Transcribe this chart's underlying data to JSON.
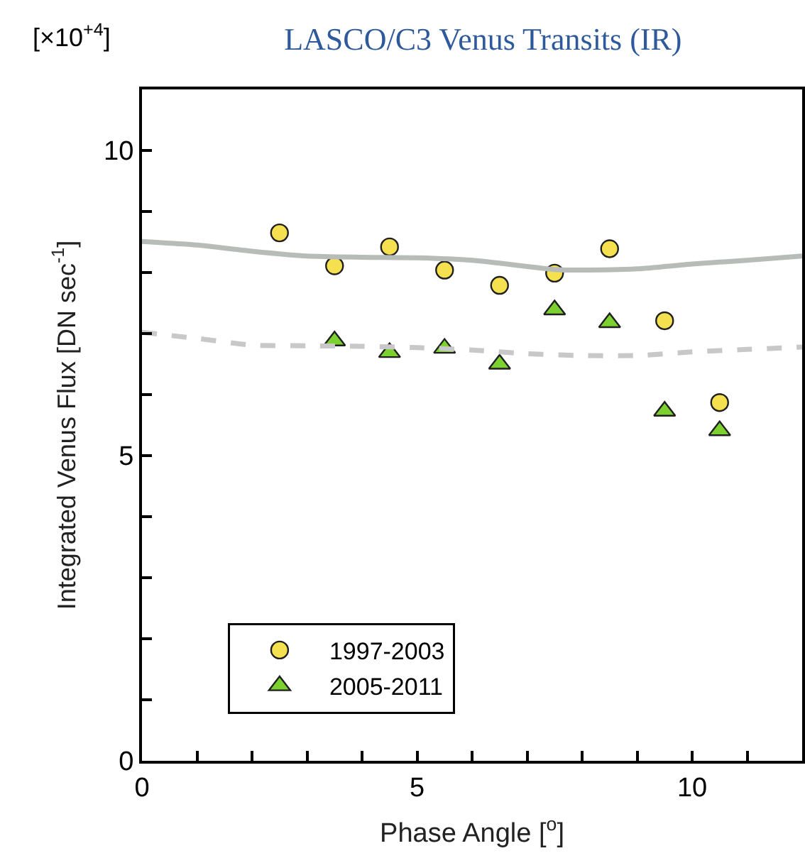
{
  "chart_data": {
    "type": "scatter",
    "title": "LASCO/C3 Venus Transits (IR)",
    "annotations": [
      "[×10$^{+4}$]"
    ],
    "xlabel": "Phase Angle [$^{o}$]",
    "ylabel": "Integrated Venus Flux [DN sec$^{-1}$]",
    "xlim": [
      0,
      12
    ],
    "ylim": [
      0,
      11
    ],
    "xticks": [
      0,
      {
        "value": 1,
        "label": null
      },
      {
        "value": 2,
        "label": null
      },
      {
        "value": 3,
        "label": null
      },
      {
        "value": 4,
        "label": null
      },
      5,
      {
        "value": 6,
        "label": null
      },
      {
        "value": 7,
        "label": null
      },
      {
        "value": 8,
        "label": null
      },
      {
        "value": 9,
        "label": null
      },
      10,
      {
        "value": 11,
        "label": null
      }
    ],
    "yticks": [
      0,
      {
        "value": 1,
        "label": null
      },
      {
        "value": 2,
        "label": null
      },
      {
        "value": 3,
        "label": null
      },
      {
        "value": 4,
        "label": null
      },
      5,
      {
        "value": 6,
        "label": null
      },
      {
        "value": 7,
        "label": null
      },
      {
        "value": 8,
        "label": null
      },
      {
        "value": 9,
        "label": null
      },
      10
    ],
    "legend": "bottom left",
    "series": [
      {
        "name": "1997-2003",
        "color": "#f5e050",
        "marker": "circle",
        "x": [
          2.5,
          3.5,
          4.5,
          5.5,
          6.5,
          7.5,
          8.5,
          9.5,
          10.5
        ],
        "values": [
          8.65,
          8.11,
          8.42,
          8.04,
          7.79,
          7.99,
          8.39,
          7.21,
          5.87
        ]
      },
      {
        "name": "2005-2011",
        "color": "#7cd030",
        "marker": "triangle",
        "x": [
          3.5,
          4.5,
          5.5,
          6.5,
          7.5,
          8.5,
          9.5,
          10.5
        ],
        "values": [
          6.88,
          6.69,
          6.76,
          6.5,
          7.39,
          7.18,
          5.73,
          5.41
        ]
      },
      {
        "type": "line",
        "color": "#b8bcb8",
        "line_style": "solid",
        "x": [
          0,
          1,
          2,
          3,
          4,
          5,
          6,
          7,
          7.5,
          8,
          9,
          10,
          11,
          12
        ],
        "values": [
          8.51,
          8.45,
          8.35,
          8.27,
          8.25,
          8.24,
          8.2,
          8.1,
          8.05,
          8.04,
          8.06,
          8.14,
          8.2,
          8.27
        ]
      },
      {
        "type": "line",
        "color": "#c8c8c8",
        "line_style": "dashed",
        "x": [
          0,
          1,
          2,
          3,
          4,
          5,
          6,
          7,
          8,
          9,
          10,
          11,
          12
        ],
        "values": [
          7.02,
          6.92,
          6.81,
          6.8,
          6.79,
          6.77,
          6.73,
          6.67,
          6.64,
          6.64,
          6.7,
          6.74,
          6.78
        ]
      }
    ]
  }
}
